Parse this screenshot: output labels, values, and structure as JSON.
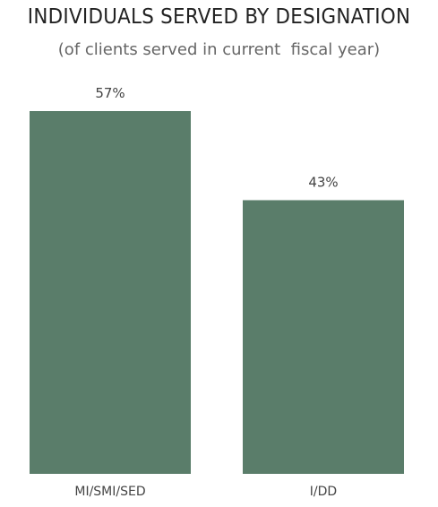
{
  "chart_title": "INDIVIDUALS SERVED BY DESIGNATION",
  "chart_subtitle": "(of clients served in current  fiscal year)",
  "colors": {
    "bar": "#5a7d6a",
    "title": "#222222",
    "subtitle": "#666666",
    "labels": "#444444"
  },
  "chart_data": {
    "type": "bar",
    "title": "INDIVIDUALS SERVED BY DESIGNATION",
    "subtitle": "(of clients served in current  fiscal year)",
    "categories": [
      "MI/SMI/SED",
      "I/DD"
    ],
    "values": [
      57,
      43
    ],
    "value_labels": [
      "57%",
      "43%"
    ],
    "unit": "%",
    "xlabel": "",
    "ylabel": "",
    "ylim": [
      0,
      57
    ],
    "grid": false,
    "legend": "none"
  }
}
